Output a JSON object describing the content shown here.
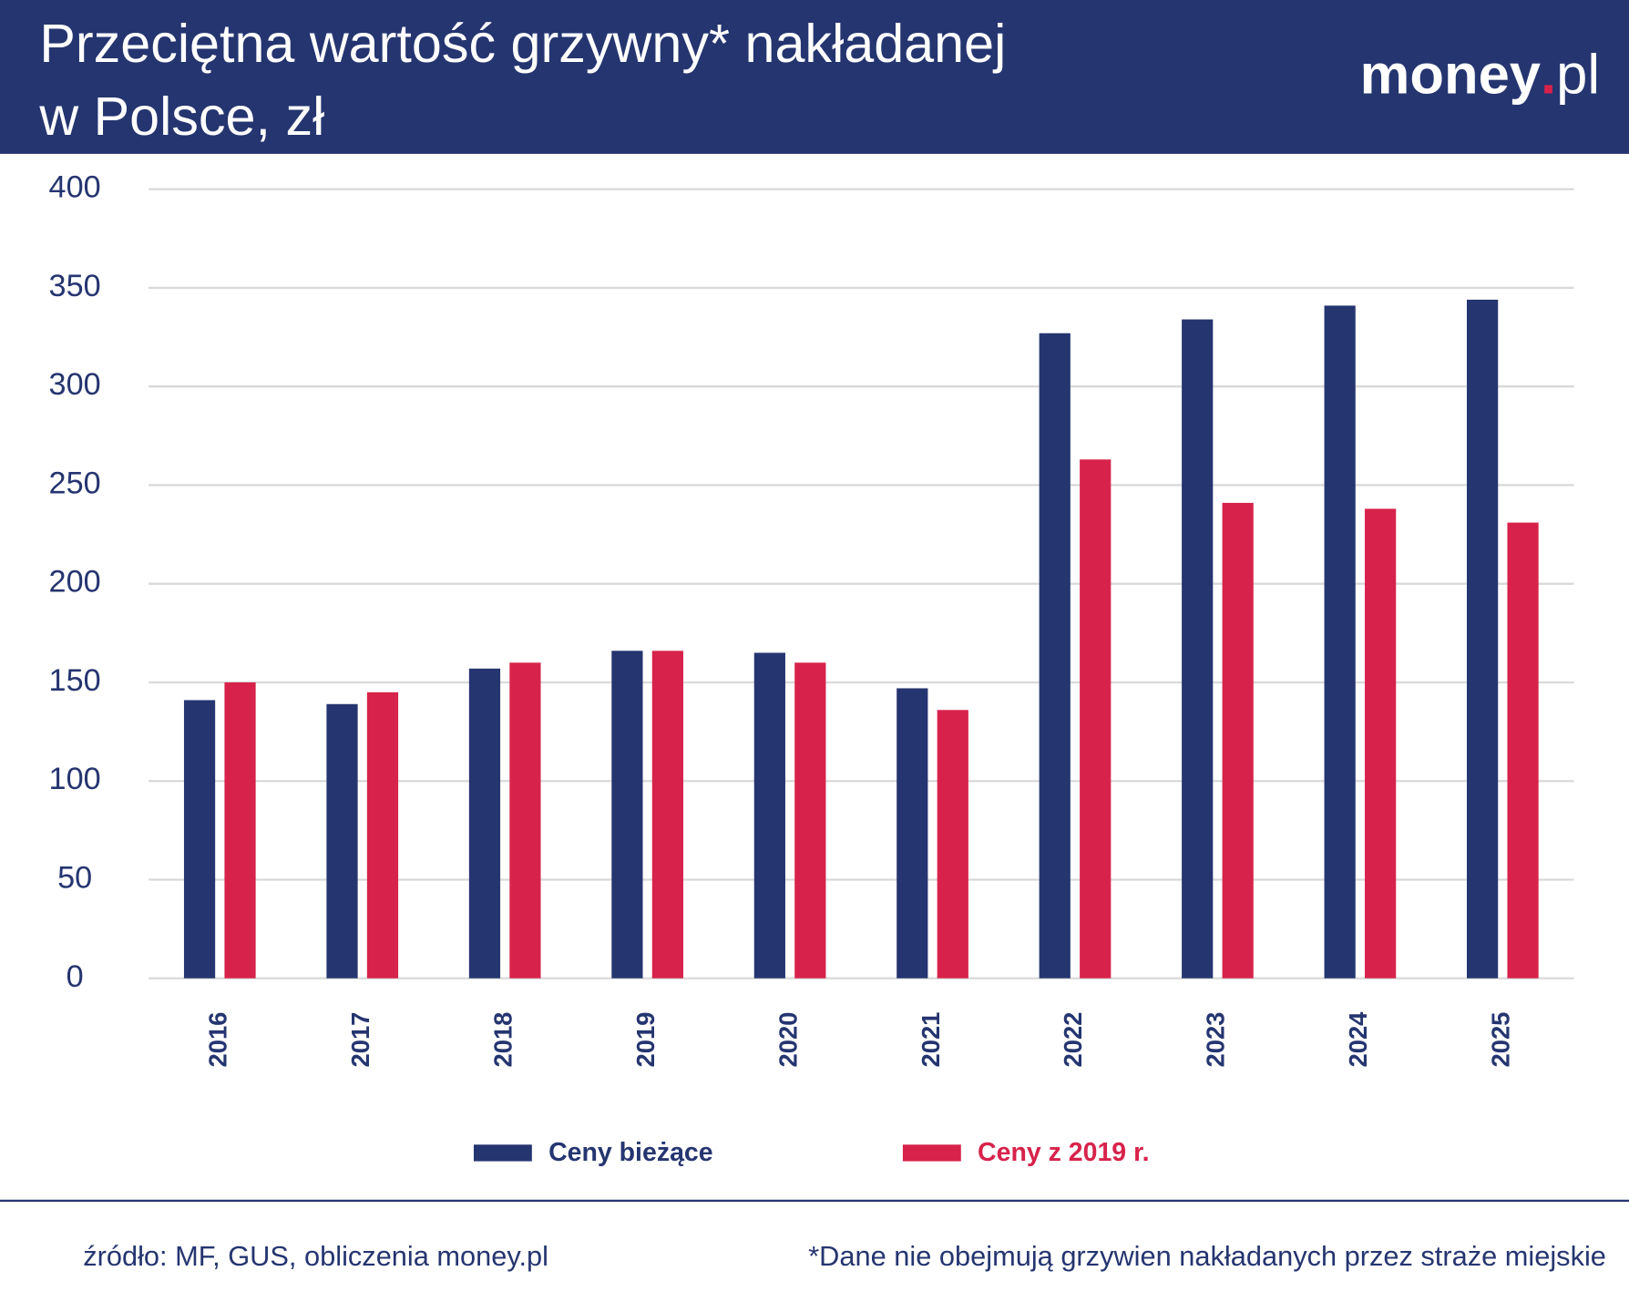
{
  "logo": [
    "money",
    ".",
    "pl"
  ],
  "chart_data": {
    "type": "bar",
    "title": [
      "Przeciętna wartość grzywny* nakładanej",
      "w Polsce, zł"
    ],
    "categories": [
      "2016",
      "2017",
      "2018",
      "2019",
      "2020",
      "2021",
      "2022",
      "2023",
      "2024",
      "2025"
    ],
    "series": [
      {
        "name": "Ceny bieżące",
        "color": "#253570",
        "values": [
          141,
          139,
          157,
          166,
          165,
          147,
          327,
          334,
          341,
          344
        ]
      },
      {
        "name": "Ceny z 2019 r.",
        "color": "#d7234b",
        "values": [
          150,
          145,
          160,
          166,
          160,
          136,
          263,
          241,
          238,
          231
        ]
      }
    ],
    "ylim": [
      0,
      400
    ],
    "yticks": [
      0,
      50,
      100,
      150,
      200,
      250,
      300,
      350,
      400
    ],
    "grid": true,
    "legend": "bottom",
    "source": "źródło: MF, GUS, obliczenia money.pl",
    "note": "*Dane nie obejmują grzywien nakładanych przez straże miejskie"
  }
}
